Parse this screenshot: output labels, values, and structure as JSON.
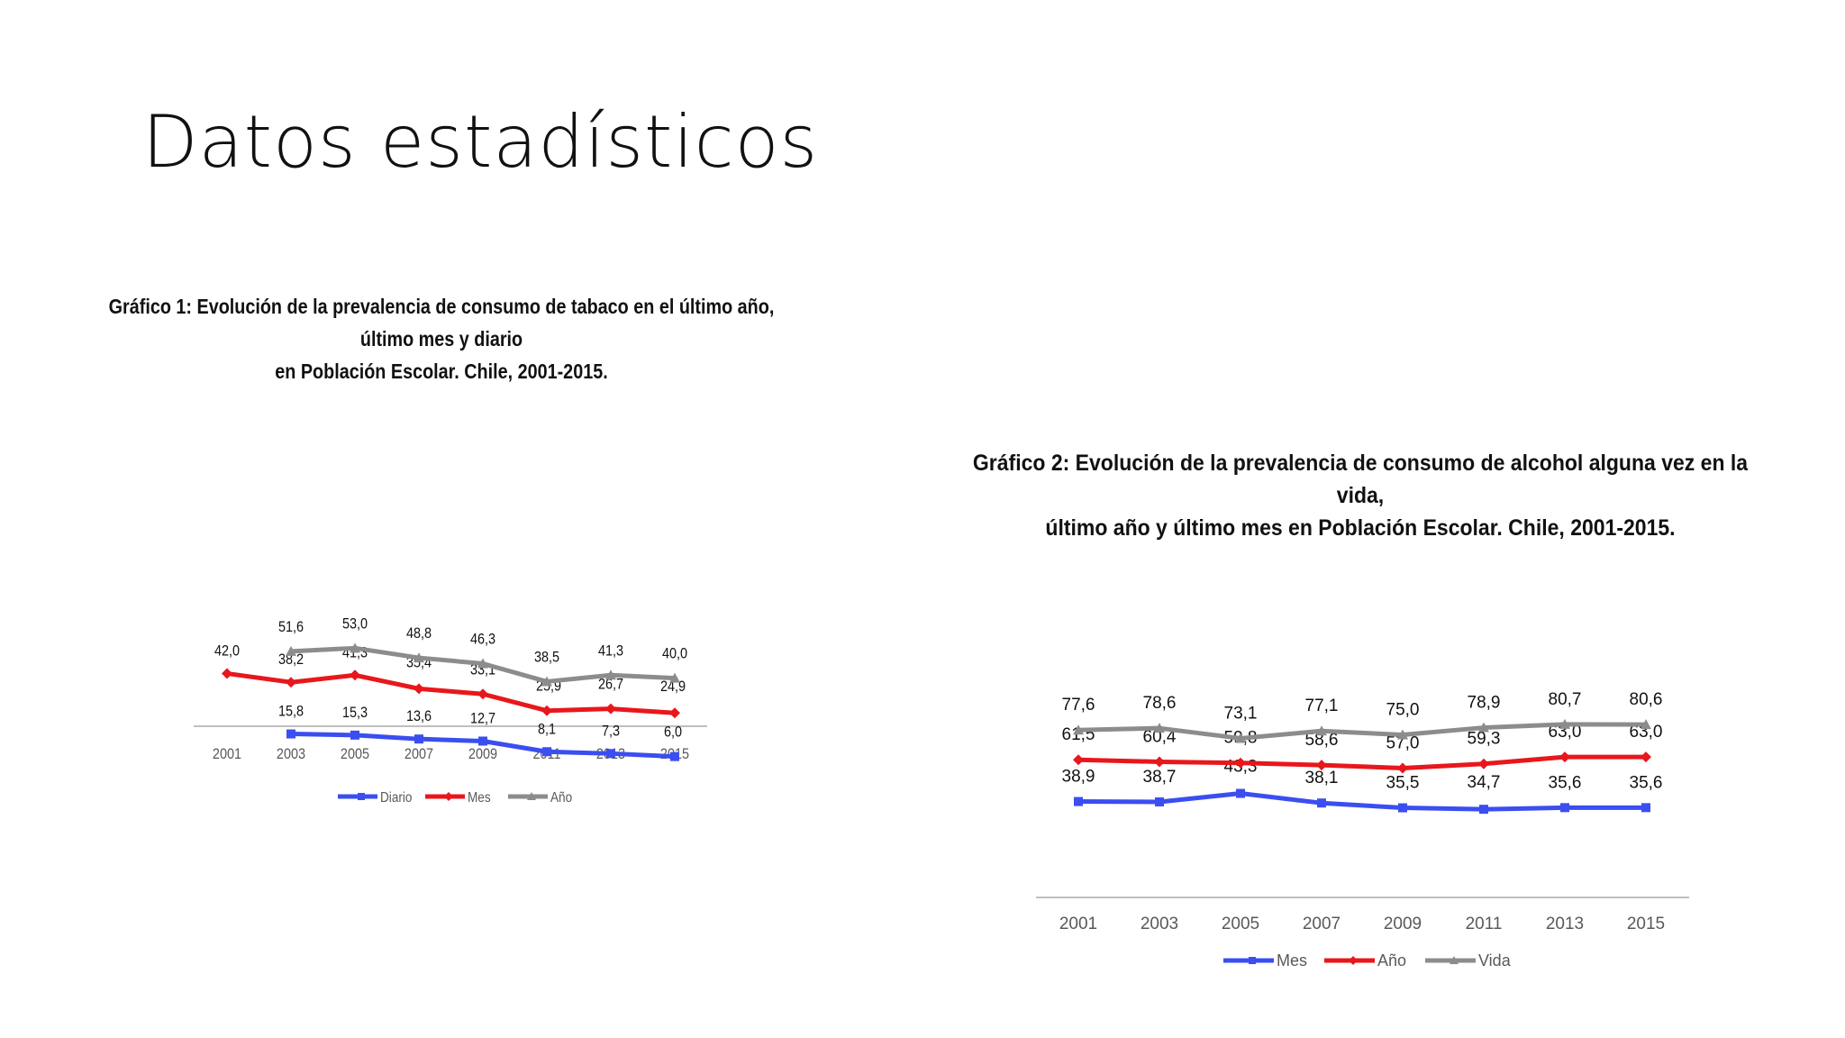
{
  "slide": {
    "title": "Datos estadísticos"
  },
  "chart_data": [
    {
      "type": "line",
      "title_line1": "Gráfico 1: Evolución de la prevalencia de consumo de tabaco en el último año, último mes y diario",
      "title_line2": "en Población Escolar. Chile, 2001-2015.",
      "categories": [
        "2001",
        "2003",
        "2005",
        "2007",
        "2009",
        "2011",
        "2013",
        "2015"
      ],
      "series": [
        {
          "name": "Diario",
          "color": "#3b4ef0",
          "marker": "square",
          "values": [
            null,
            15.8,
            15.3,
            13.6,
            12.7,
            8.1,
            7.3,
            6.0
          ],
          "labels": [
            null,
            "15,8",
            "15,3",
            "13,6",
            "12,7",
            "8,1",
            "7,3",
            "6,0"
          ]
        },
        {
          "name": "Mes",
          "color": "#e8171c",
          "marker": "diamond",
          "values": [
            42.0,
            38.2,
            41.3,
            35.4,
            33.1,
            25.9,
            26.7,
            24.9
          ],
          "labels": [
            "42,0",
            "38,2",
            "41,3",
            "35,4",
            "33,1",
            "25,9",
            "26,7",
            "24,9"
          ]
        },
        {
          "name": "Año",
          "color": "#8c8c8c",
          "marker": "triangle",
          "values": [
            null,
            51.6,
            53.0,
            48.8,
            46.3,
            38.5,
            41.3,
            40.0
          ],
          "labels": [
            null,
            "51,6",
            "53,0",
            "48,8",
            "46,3",
            "38,5",
            "41,3",
            "40,0"
          ]
        }
      ],
      "grid": false,
      "legend": "bottom"
    },
    {
      "type": "line",
      "title_line1": "Gráfico 2: Evolución de la prevalencia de consumo de alcohol alguna vez en la vida,",
      "title_line2": "último año y último mes en Población Escolar. Chile, 2001-2015.",
      "categories": [
        "2001",
        "2003",
        "2005",
        "2007",
        "2009",
        "2011",
        "2013",
        "2015"
      ],
      "series": [
        {
          "name": "Mes",
          "color": "#3b4ef0",
          "marker": "square",
          "values": [
            38.9,
            38.7,
            43.3,
            38.1,
            35.5,
            34.7,
            35.6,
            35.6
          ],
          "labels": [
            "38,9",
            "38,7",
            "43,3",
            "38,1",
            "35,5",
            "34,7",
            "35,6",
            "35,6"
          ]
        },
        {
          "name": "Año",
          "color": "#e8171c",
          "marker": "diamond",
          "values": [
            61.5,
            60.4,
            59.8,
            58.6,
            57.0,
            59.3,
            63.0,
            63.0
          ],
          "labels": [
            "61,5",
            "60,4",
            "59,8",
            "58,6",
            "57,0",
            "59,3",
            "63,0",
            "63,0"
          ]
        },
        {
          "name": "Vida",
          "color": "#8c8c8c",
          "marker": "triangle",
          "values": [
            77.6,
            78.6,
            73.1,
            77.1,
            75.0,
            78.9,
            80.7,
            80.6
          ],
          "labels": [
            "77,6",
            "78,6",
            "73,1",
            "77,1",
            "75,0",
            "78,9",
            "80,7",
            "80,6"
          ]
        }
      ],
      "grid": false,
      "legend": "bottom"
    }
  ]
}
